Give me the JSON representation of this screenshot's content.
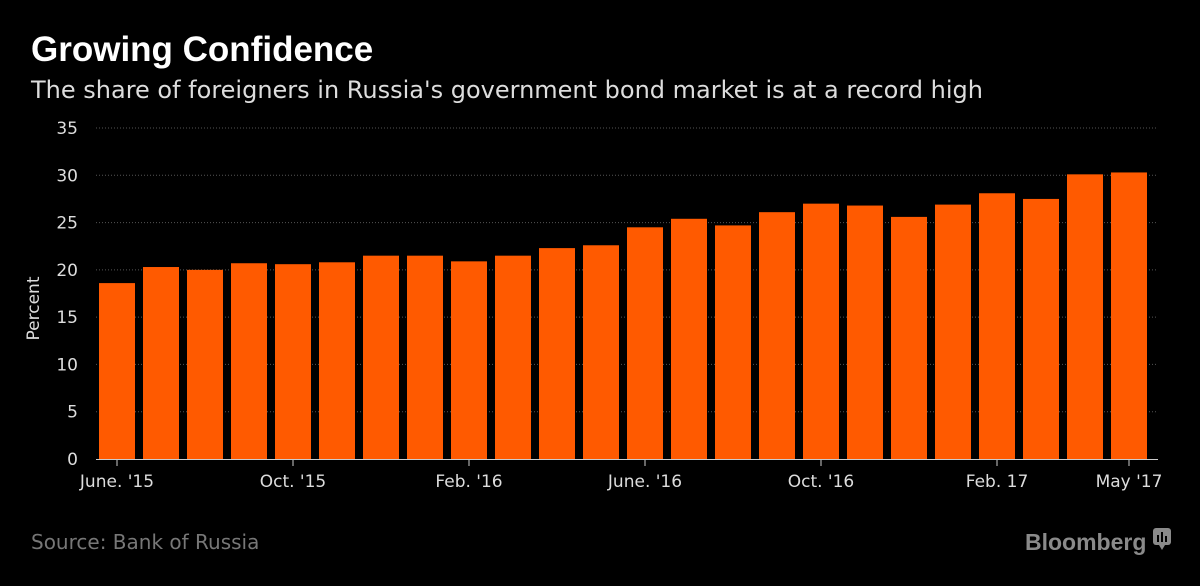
{
  "header": {
    "title": "Growing Confidence",
    "subtitle": "The share of foreigners in Russia's government bond market is at a record high"
  },
  "footer": {
    "source": "Source: Bank of Russia",
    "brand": "Bloomberg"
  },
  "colors": {
    "bar": "#ff5a00",
    "background": "#000000"
  },
  "chart_data": {
    "type": "bar",
    "title": "Growing Confidence",
    "xlabel": "",
    "ylabel": "Percent",
    "ylim": [
      0,
      35
    ],
    "yticks": [
      0,
      5,
      10,
      15,
      20,
      25,
      30,
      35
    ],
    "grid": true,
    "categories": [
      "Jun 15",
      "Jul 15",
      "Aug 15",
      "Sep 15",
      "Oct 15",
      "Nov 15",
      "Dec 15",
      "Jan 16",
      "Feb 16",
      "Mar 16",
      "Apr 16",
      "May 16",
      "Jun 16",
      "Jul 16",
      "Aug 16",
      "Sep 16",
      "Oct 16",
      "Nov 16",
      "Dec 16",
      "Jan 17",
      "Feb 17",
      "Mar 17",
      "Apr 17",
      "May 17"
    ],
    "values": [
      18.6,
      20.3,
      20.0,
      20.7,
      20.6,
      20.8,
      21.5,
      21.5,
      20.9,
      21.5,
      22.3,
      22.6,
      24.5,
      25.4,
      24.7,
      26.1,
      27.0,
      26.8,
      25.6,
      26.9,
      28.1,
      27.5,
      30.1,
      30.3
    ],
    "xtick_labels": [
      {
        "index": 0,
        "label": "June. '15"
      },
      {
        "index": 4,
        "label": "Oct. '15"
      },
      {
        "index": 8,
        "label": "Feb. '16"
      },
      {
        "index": 12,
        "label": "June. '16"
      },
      {
        "index": 16,
        "label": "Oct. '16"
      },
      {
        "index": 20,
        "label": "Feb. 17"
      },
      {
        "index": 23,
        "label": "May '17"
      }
    ]
  }
}
